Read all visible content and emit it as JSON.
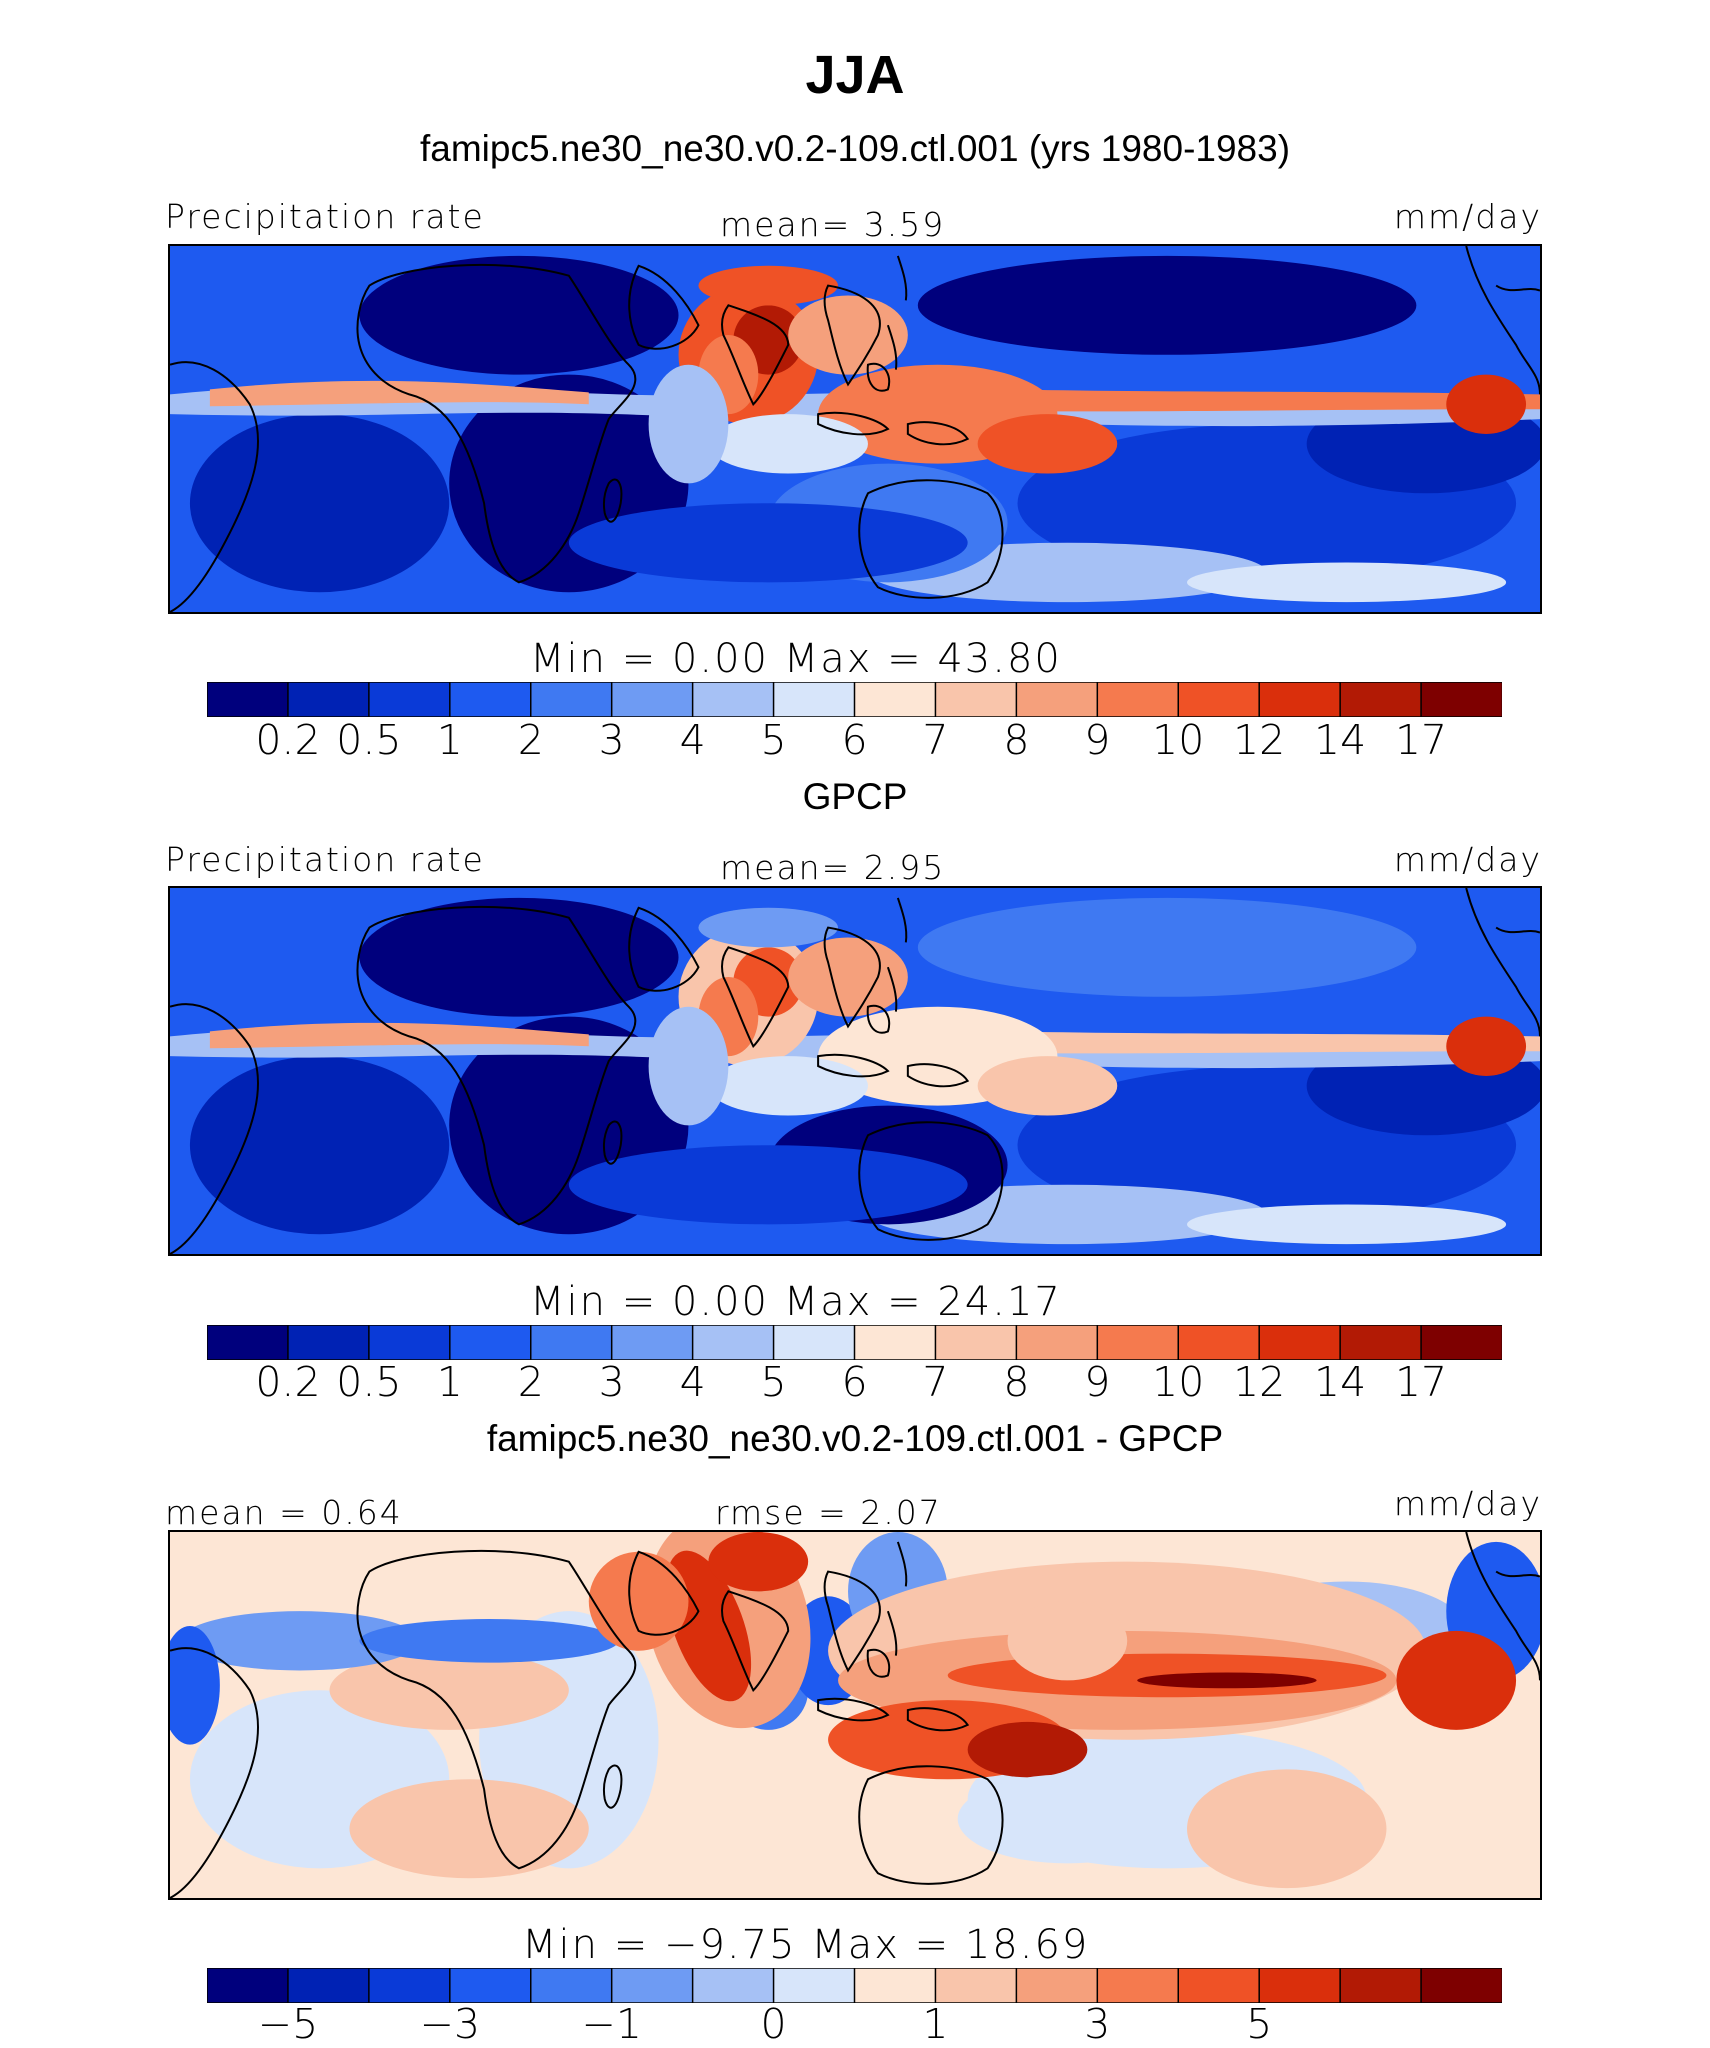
{
  "title": "JJA",
  "subtitle": "famipc5.ne30_ne30.v0.2-109.ctl.001 (yrs 1980-1983)",
  "colors": [
    "#00007d",
    "#0022b4",
    "#0a3ad7",
    "#1e5af0",
    "#3f79f2",
    "#6e9bf3",
    "#a6c1f5",
    "#d7e5fa",
    "#fde6d5",
    "#f9c5ab",
    "#f5a07c",
    "#f57a4e",
    "#ef5226",
    "#da2f0c",
    "#b21a05",
    "#7e0000"
  ],
  "panels": [
    {
      "heading": "",
      "left_label": "Precipitation rate",
      "center_label": "mean=   3.59",
      "right_label": "mm/day",
      "minmax": "Min  =    0.00  Max  =   43.80",
      "ticks": [
        "0.2",
        "0.5",
        "1",
        "2",
        "3",
        "4",
        "5",
        "6",
        "7",
        "8",
        "9",
        "10",
        "12",
        "14",
        "17"
      ],
      "variant": "model"
    },
    {
      "heading": "GPCP",
      "left_label": "Precipitation rate",
      "center_label": "mean=   2.95",
      "right_label": "mm/day",
      "minmax": "Min  =    0.00  Max  =   24.17",
      "ticks": [
        "0.2",
        "0.5",
        "1",
        "2",
        "3",
        "4",
        "5",
        "6",
        "7",
        "8",
        "9",
        "10",
        "12",
        "14",
        "17"
      ],
      "variant": "obs"
    },
    {
      "heading": "famipc5.ne30_ne30.v0.2-109.ctl.001 - GPCP",
      "left_label": "mean  =   0.64",
      "center_label": "rmse  =   2.07",
      "right_label": "mm/day",
      "minmax": "Min  =   −9.75  Max  =   18.69",
      "ticks": [
        "−5",
        "−3",
        "−1",
        "0",
        "1",
        "3",
        "5"
      ],
      "variant": "diff"
    }
  ],
  "chart_data": [
    {
      "type": "heatmap",
      "title": "JJA",
      "subtitle": "famipc5.ne30_ne30.v0.2-109.ctl.001 (yrs 1980-1983)",
      "variable": "Precipitation rate",
      "units": "mm/day",
      "mean": 3.59,
      "min": 0.0,
      "max": 43.8,
      "levels": [
        0.2,
        0.5,
        1,
        2,
        3,
        4,
        5,
        6,
        7,
        8,
        9,
        10,
        12,
        14,
        17
      ]
    },
    {
      "type": "heatmap",
      "title": "GPCP",
      "variable": "Precipitation rate",
      "units": "mm/day",
      "mean": 2.95,
      "min": 0.0,
      "max": 24.17,
      "levels": [
        0.2,
        0.5,
        1,
        2,
        3,
        4,
        5,
        6,
        7,
        8,
        9,
        10,
        12,
        14,
        17
      ]
    },
    {
      "type": "heatmap",
      "title": "famipc5.ne30_ne30.v0.2-109.ctl.001 - GPCP",
      "units": "mm/day",
      "mean": 0.64,
      "rmse": 2.07,
      "min": -9.75,
      "max": 18.69,
      "levels": [
        -5,
        -3,
        -1,
        0,
        1,
        3,
        5
      ]
    }
  ]
}
